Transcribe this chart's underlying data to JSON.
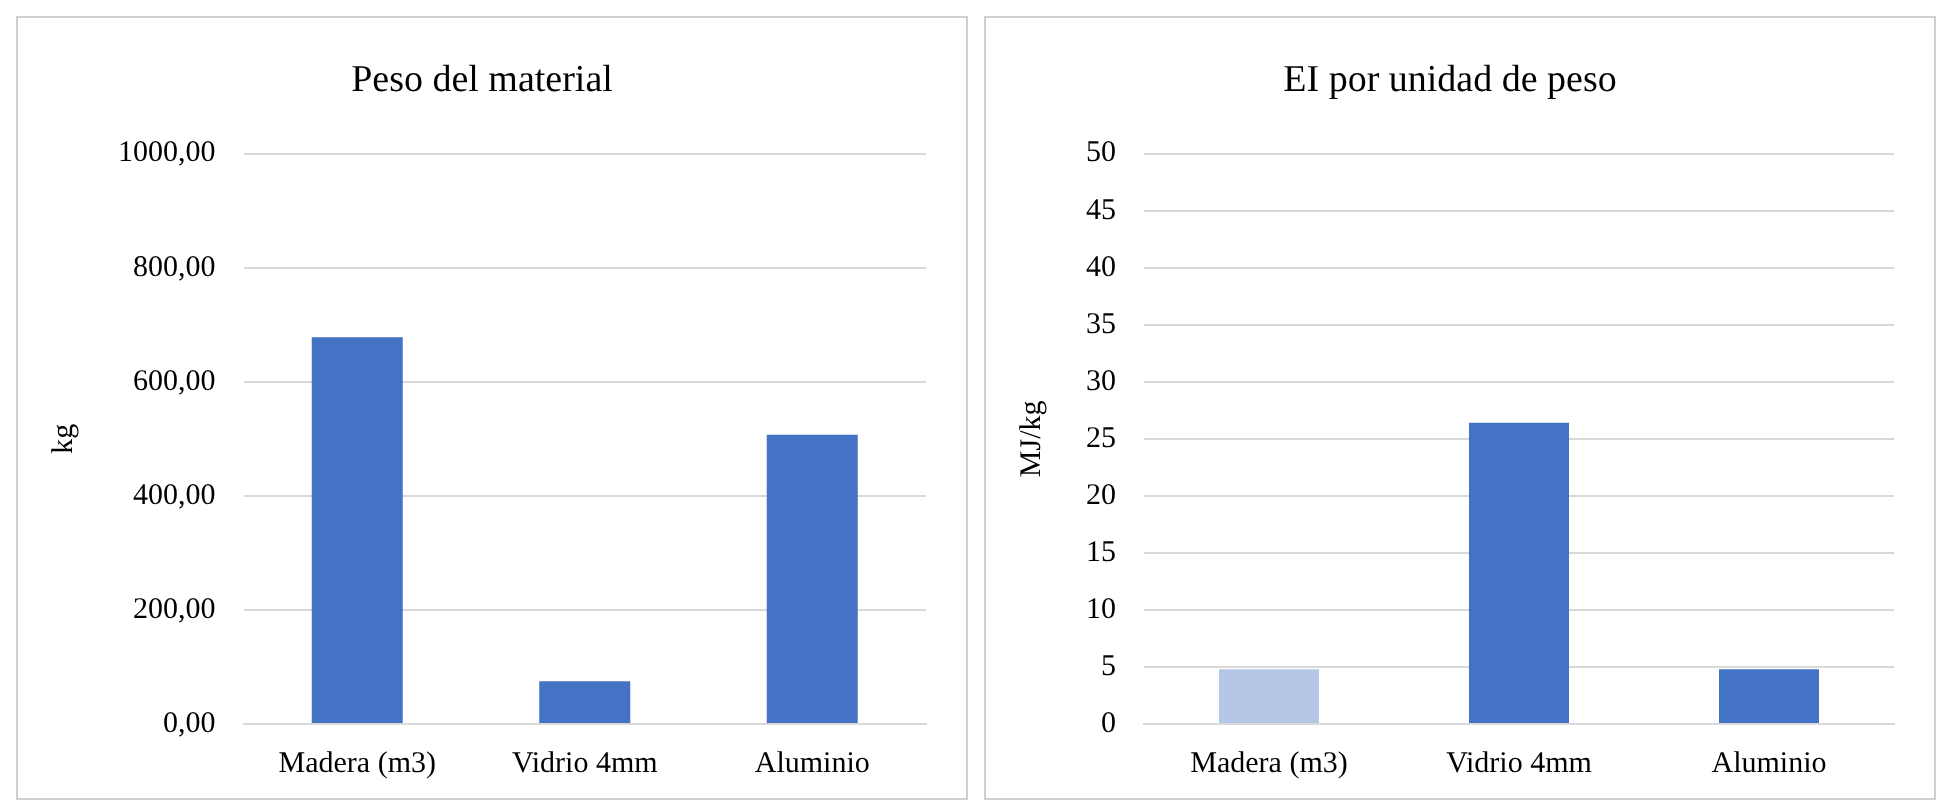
{
  "chart_data": [
    {
      "type": "bar",
      "title": "Peso del material",
      "ylabel": "kg",
      "categories": [
        "Madera (m3)",
        "Vidrio 4mm",
        "Aluminio"
      ],
      "values": [
        678,
        75,
        507
      ],
      "color": "#4472c4",
      "ylim": [
        0,
        1000
      ],
      "yticks": [
        {
          "value": 0,
          "label": "0,00"
        },
        {
          "value": 200,
          "label": "200,00"
        },
        {
          "value": 400,
          "label": "400,00"
        },
        {
          "value": 600,
          "label": "600,00"
        },
        {
          "value": 800,
          "label": "800,00"
        },
        {
          "value": 1000,
          "label": "1000,00"
        }
      ],
      "grid": "y"
    },
    {
      "type": "bar",
      "title": "EI por unidad de peso",
      "ylabel": "MJ/kg",
      "categories": [
        "Madera (m3)",
        "Vidrio 4mm",
        "Aluminio"
      ],
      "values": [
        4.8,
        26.4,
        4.8
      ],
      "colors": [
        "#b4c7e7",
        "#4472c4",
        "#4472c4"
      ],
      "ylim": [
        0,
        50
      ],
      "yticks": [
        0,
        5,
        10,
        15,
        20,
        25,
        30,
        35,
        40,
        45,
        50
      ],
      "grid": "y"
    }
  ]
}
